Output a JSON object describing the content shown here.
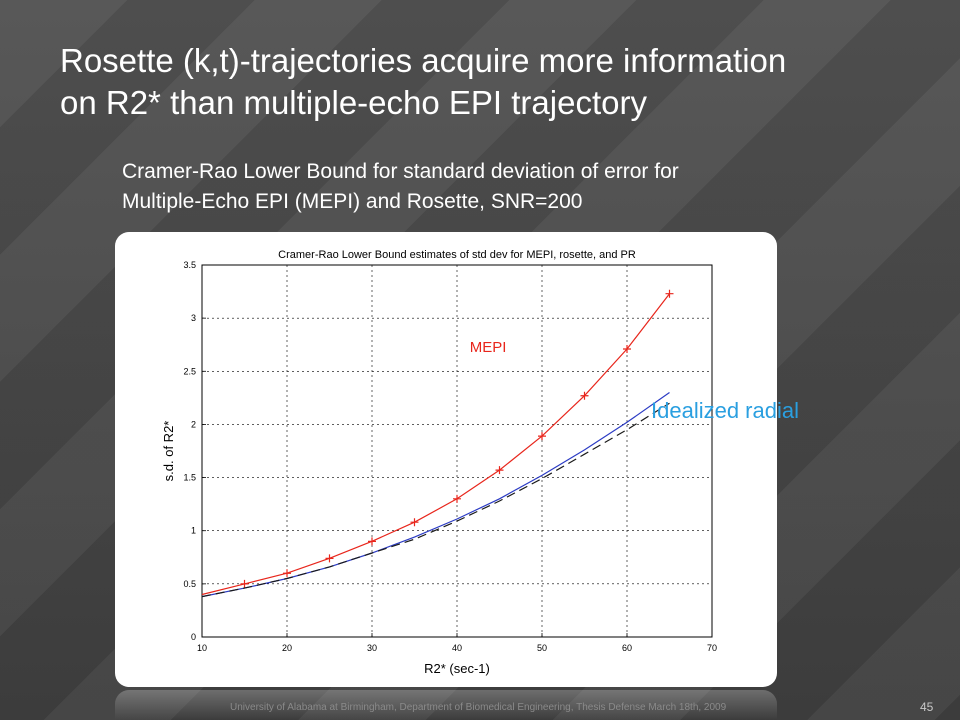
{
  "slide": {
    "title": "Rosette (k,t)-trajectories acquire more information\non R2* than multiple-echo EPI trajectory",
    "subtitle": "Cramer-Rao Lower Bound for standard deviation of error for\nMultiple-Echo EPI (MEPI) and Rosette, SNR=200",
    "footer": "University of Alabama at Birmingham, Department of Biomedical Engineering, Thesis Defense March 18th, 2009",
    "page_number": "45"
  },
  "chart_data": {
    "type": "line",
    "title": "Cramer-Rao Lower Bound estimates of std dev for MEPI, rosette, and PR",
    "xlabel": "R2* (sec-1)",
    "ylabel": "s.d. of R2*",
    "xlim": [
      10,
      70
    ],
    "ylim": [
      0,
      3.5
    ],
    "xticks": [
      "10",
      "20",
      "30",
      "40",
      "50",
      "60",
      "70"
    ],
    "yticks": [
      "0",
      "0.5",
      "1",
      "1.5",
      "2",
      "2.5",
      "3",
      "3.5"
    ],
    "grid": true,
    "series": [
      {
        "name": "MEPI",
        "color": "#e8261c",
        "style": "solid",
        "markers": "plus",
        "x": [
          10,
          15,
          20,
          25,
          30,
          35,
          40,
          45,
          50,
          55,
          60,
          65
        ],
        "values": [
          0.4,
          0.5,
          0.6,
          0.74,
          0.9,
          1.08,
          1.3,
          1.57,
          1.89,
          2.27,
          2.71,
          3.23
        ]
      },
      {
        "name": "Idealized radial",
        "color": "#2b3bc4",
        "style": "solid",
        "markers": "none",
        "x": [
          10,
          15,
          20,
          25,
          30,
          35,
          40,
          45,
          50,
          55,
          60,
          65
        ],
        "values": [
          0.38,
          0.46,
          0.55,
          0.66,
          0.79,
          0.94,
          1.11,
          1.3,
          1.52,
          1.76,
          2.02,
          2.3
        ]
      },
      {
        "name": "",
        "color": "#1a1a1a",
        "style": "dashed",
        "markers": "none",
        "x": [
          10,
          15,
          20,
          25,
          30,
          35,
          40,
          45,
          50,
          55,
          60,
          65
        ],
        "values": [
          0.38,
          0.46,
          0.55,
          0.66,
          0.79,
          0.92,
          1.09,
          1.28,
          1.49,
          1.72,
          1.95,
          2.2
        ]
      }
    ],
    "annotations": [
      {
        "text": "MEPI",
        "color": "#e8261c"
      },
      {
        "text": "Idealized radial",
        "color": "#2a9fe0"
      }
    ]
  }
}
